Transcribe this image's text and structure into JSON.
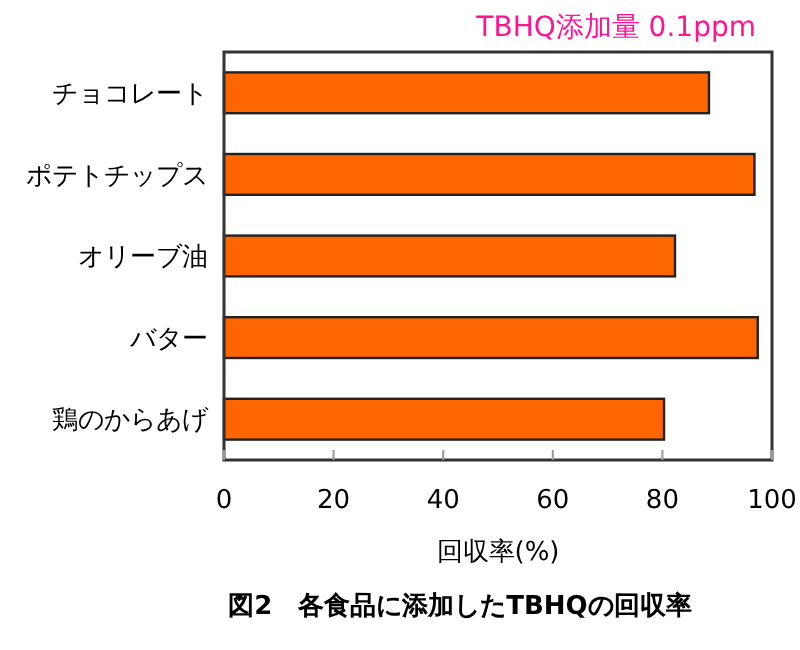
{
  "chart_data": {
    "type": "bar",
    "orientation": "horizontal",
    "title": "TBHQ添加量 0.1ppm",
    "xlabel": "回収率(%)",
    "annotations": [
      "図2　各食品に添加したTBHQの回収率"
    ],
    "categories": [
      "チョコレート",
      "ポテトチップス",
      "オリーブ油",
      "バター",
      "鶏のからあげ"
    ],
    "values": [
      88.5,
      96.8,
      82.3,
      97.4,
      80.3
    ],
    "color": "#ff6600",
    "xlim": [
      0,
      100
    ],
    "xticks": [
      0,
      20,
      40,
      60,
      80,
      100
    ],
    "grid": false
  }
}
